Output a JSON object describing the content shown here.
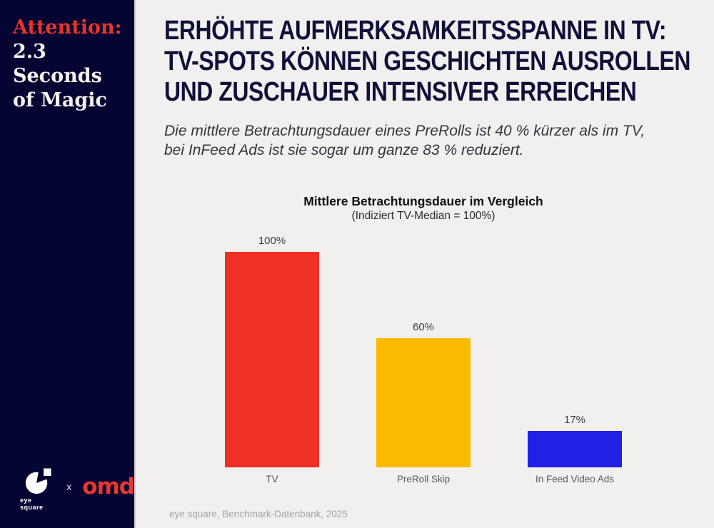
{
  "slide": {
    "sidebar": {
      "tagline": {
        "accent": "Attention:",
        "line1": "2.3 Seconds",
        "line2": "of Magic"
      },
      "logos": {
        "eye_square": "eye square",
        "separator": "x",
        "omd": "omd"
      }
    },
    "headline": {
      "line1": "ERHÖHTE AUFMERKSAMKEITSSPANNE IN TV:",
      "line2": "TV-SPOTS KÖNNEN GESCHICHTEN AUSROLLEN",
      "line3": "UND ZUSCHAUER INTENSIVER ERREICHEN"
    },
    "subtitle": {
      "line1": "Die mittlere Betrachtungsdauer eines PreRolls ist 40 % kürzer als im TV,",
      "line2": "bei InFeed Ads ist sie sogar um ganze 83 % reduziert."
    },
    "source": "eye square, Benchmark-Datenbank, 2025"
  },
  "colors": {
    "sidebar_bg": "#050533",
    "main_bg": "#f1f0ee",
    "headline": "#10103a",
    "accent_red": "#e8332a",
    "omd_red": "#e9382f"
  },
  "chart_data": {
    "type": "bar",
    "title": "Mittlere Betrachtungsdauer im Vergleich",
    "subtitle": "(Indiziert TV-Median = 100%)",
    "categories": [
      "TV",
      "PreRoll Skip",
      "In Feed Video Ads"
    ],
    "values": [
      100,
      60,
      17
    ],
    "value_labels": [
      "100%",
      "60%",
      "17%"
    ],
    "bar_colors": [
      "#ee3124",
      "#fcba00",
      "#2121e6"
    ],
    "ylim": [
      0,
      100
    ],
    "xlabel": "",
    "ylabel": "",
    "grid": false,
    "legend": false
  }
}
